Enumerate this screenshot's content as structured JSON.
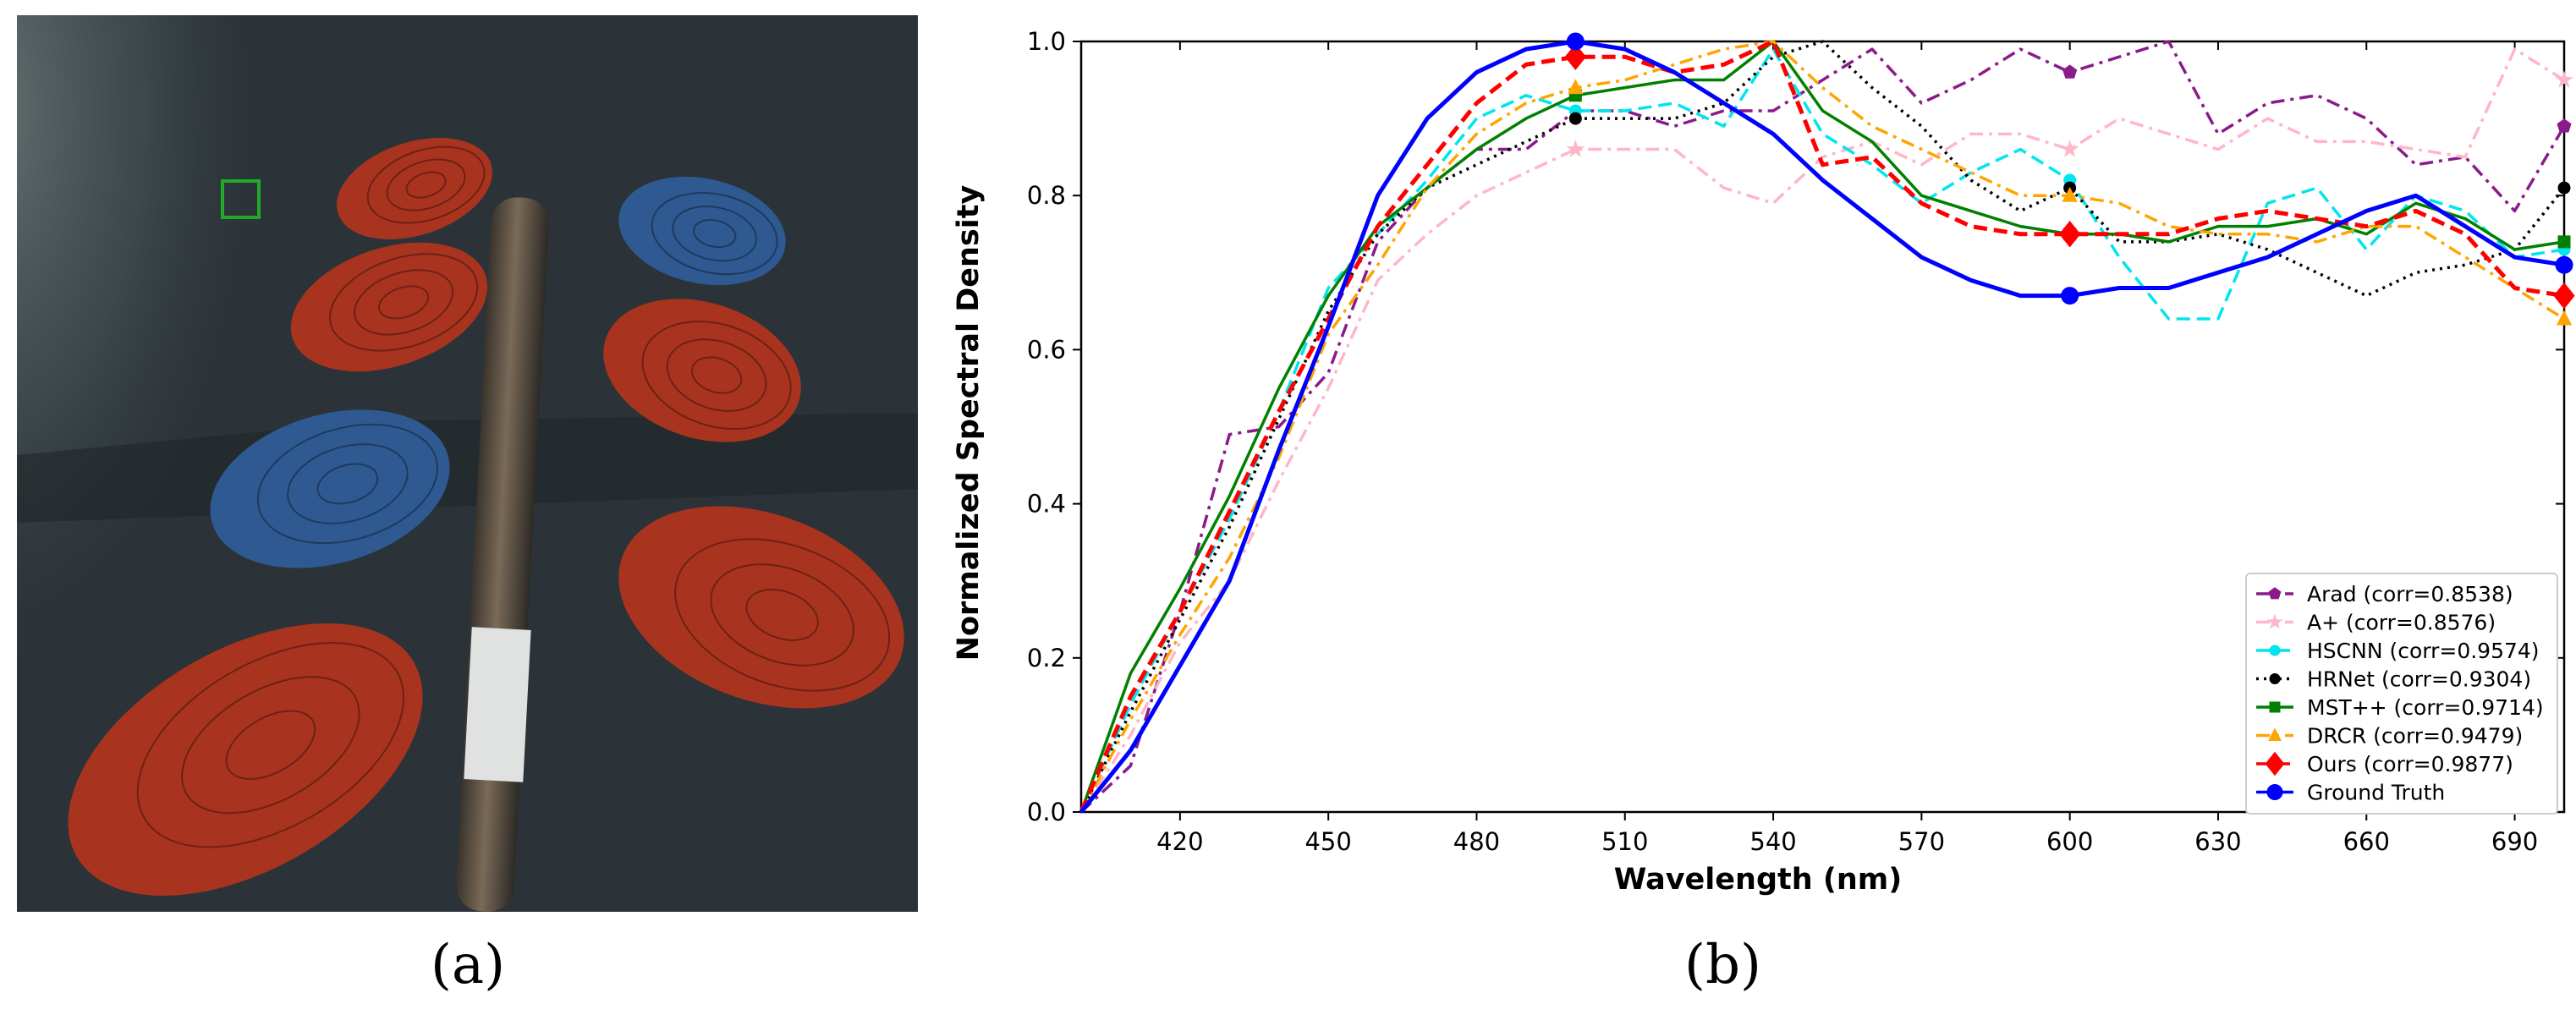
{
  "figure": {
    "panel_a_label": "(a)",
    "panel_b_label": "(b)"
  },
  "photo": {
    "background_color": "#2b3338",
    "foot_red_color": "#a8341f",
    "foot_blue_color": "#2e5a91",
    "marker_color": "#1faa2a"
  },
  "chart_data": {
    "type": "line",
    "title": "",
    "xlabel": "Wavelength (nm)",
    "ylabel": "Normalized Spectral Density",
    "xlim": [
      400,
      700
    ],
    "ylim": [
      0.0,
      1.0
    ],
    "xticks": [
      420,
      450,
      480,
      510,
      540,
      570,
      600,
      630,
      660,
      690
    ],
    "yticks": [
      0.0,
      0.2,
      0.4,
      0.6,
      0.8,
      1.0
    ],
    "grid": false,
    "legend_position": "lower right",
    "x": [
      400,
      410,
      420,
      430,
      440,
      450,
      460,
      470,
      480,
      490,
      500,
      510,
      520,
      530,
      540,
      550,
      560,
      570,
      580,
      590,
      600,
      610,
      620,
      630,
      640,
      650,
      660,
      670,
      680,
      690,
      700
    ],
    "series": [
      {
        "name": "Arad (corr=0.8538)",
        "color": "#8b1a8b",
        "dash": "dashdot",
        "marker": "pentagon",
        "marker_x": [
          600,
          700
        ],
        "values": [
          0.0,
          0.06,
          0.26,
          0.49,
          0.5,
          0.57,
          0.74,
          0.81,
          0.86,
          0.86,
          0.91,
          0.91,
          0.89,
          0.91,
          0.91,
          0.95,
          0.99,
          0.92,
          0.95,
          0.99,
          0.96,
          0.98,
          1.0,
          0.88,
          0.92,
          0.93,
          0.9,
          0.84,
          0.85,
          0.78,
          0.89
        ]
      },
      {
        "name": "A+ (corr=0.8576)",
        "color": "#ffb6c8",
        "dash": "dashdot",
        "marker": "star",
        "marker_x": [
          500,
          600,
          700
        ],
        "values": [
          0.0,
          0.1,
          0.22,
          0.3,
          0.43,
          0.55,
          0.69,
          0.75,
          0.8,
          0.83,
          0.86,
          0.86,
          0.86,
          0.81,
          0.79,
          0.85,
          0.87,
          0.84,
          0.88,
          0.88,
          0.86,
          0.9,
          0.88,
          0.86,
          0.9,
          0.87,
          0.87,
          0.86,
          0.85,
          0.99,
          0.95
        ]
      },
      {
        "name": "HSCNN (corr=0.9574)",
        "color": "#00e5ee",
        "dash": "dashed",
        "marker": "circle",
        "marker_x": [
          500,
          600,
          700
        ],
        "values": [
          0.0,
          0.14,
          0.26,
          0.38,
          0.52,
          0.68,
          0.75,
          0.82,
          0.9,
          0.93,
          0.91,
          0.91,
          0.92,
          0.89,
          0.99,
          0.88,
          0.84,
          0.79,
          0.83,
          0.86,
          0.82,
          0.72,
          0.64,
          0.64,
          0.79,
          0.81,
          0.73,
          0.8,
          0.78,
          0.72,
          0.73
        ]
      },
      {
        "name": "HRNet (corr=0.9304)",
        "color": "#000000",
        "dash": "dotted",
        "marker": "circle",
        "marker_x": [
          500,
          600,
          700
        ],
        "values": [
          0.0,
          0.13,
          0.25,
          0.37,
          0.51,
          0.65,
          0.75,
          0.81,
          0.84,
          0.87,
          0.9,
          0.9,
          0.9,
          0.92,
          0.98,
          1.0,
          0.94,
          0.89,
          0.82,
          0.78,
          0.81,
          0.74,
          0.74,
          0.75,
          0.73,
          0.7,
          0.67,
          0.7,
          0.71,
          0.73,
          0.81
        ]
      },
      {
        "name": "MST++ (corr=0.9714)",
        "color": "#008000",
        "dash": "solid",
        "marker": "square",
        "marker_x": [
          500,
          600,
          700
        ],
        "values": [
          0.0,
          0.18,
          0.29,
          0.41,
          0.55,
          0.67,
          0.76,
          0.81,
          0.86,
          0.9,
          0.93,
          0.94,
          0.95,
          0.95,
          1.0,
          0.91,
          0.87,
          0.8,
          0.78,
          0.76,
          0.75,
          0.75,
          0.74,
          0.76,
          0.76,
          0.77,
          0.75,
          0.79,
          0.77,
          0.73,
          0.74
        ]
      },
      {
        "name": "DRCR (corr=0.9479)",
        "color": "#ffa500",
        "dash": "dashdot",
        "marker": "triangle",
        "marker_x": [
          500,
          600,
          700
        ],
        "values": [
          0.0,
          0.12,
          0.23,
          0.33,
          0.46,
          0.62,
          0.71,
          0.81,
          0.88,
          0.92,
          0.94,
          0.95,
          0.97,
          0.99,
          1.0,
          0.94,
          0.89,
          0.86,
          0.83,
          0.8,
          0.8,
          0.79,
          0.76,
          0.75,
          0.75,
          0.74,
          0.76,
          0.76,
          0.72,
          0.68,
          0.64
        ]
      },
      {
        "name": "Ours (corr=0.9877)",
        "color": "#ff0000",
        "dash": "dashed",
        "marker": "diamond",
        "marker_x": [
          500,
          600,
          700
        ],
        "values": [
          0.0,
          0.15,
          0.26,
          0.39,
          0.52,
          0.64,
          0.76,
          0.84,
          0.92,
          0.97,
          0.98,
          0.98,
          0.96,
          0.97,
          1.0,
          0.84,
          0.85,
          0.79,
          0.76,
          0.75,
          0.75,
          0.75,
          0.75,
          0.77,
          0.78,
          0.77,
          0.76,
          0.78,
          0.75,
          0.68,
          0.67
        ]
      },
      {
        "name": "Ground Truth",
        "color": "#0000ff",
        "dash": "solid",
        "marker": "circle",
        "marker_x": [
          500,
          600,
          700
        ],
        "values": [
          0.0,
          0.08,
          0.19,
          0.3,
          0.47,
          0.63,
          0.8,
          0.9,
          0.96,
          0.99,
          1.0,
          0.99,
          0.96,
          0.92,
          0.88,
          0.82,
          0.77,
          0.72,
          0.69,
          0.67,
          0.67,
          0.68,
          0.68,
          0.7,
          0.72,
          0.75,
          0.78,
          0.8,
          0.76,
          0.72,
          0.71
        ]
      }
    ]
  }
}
